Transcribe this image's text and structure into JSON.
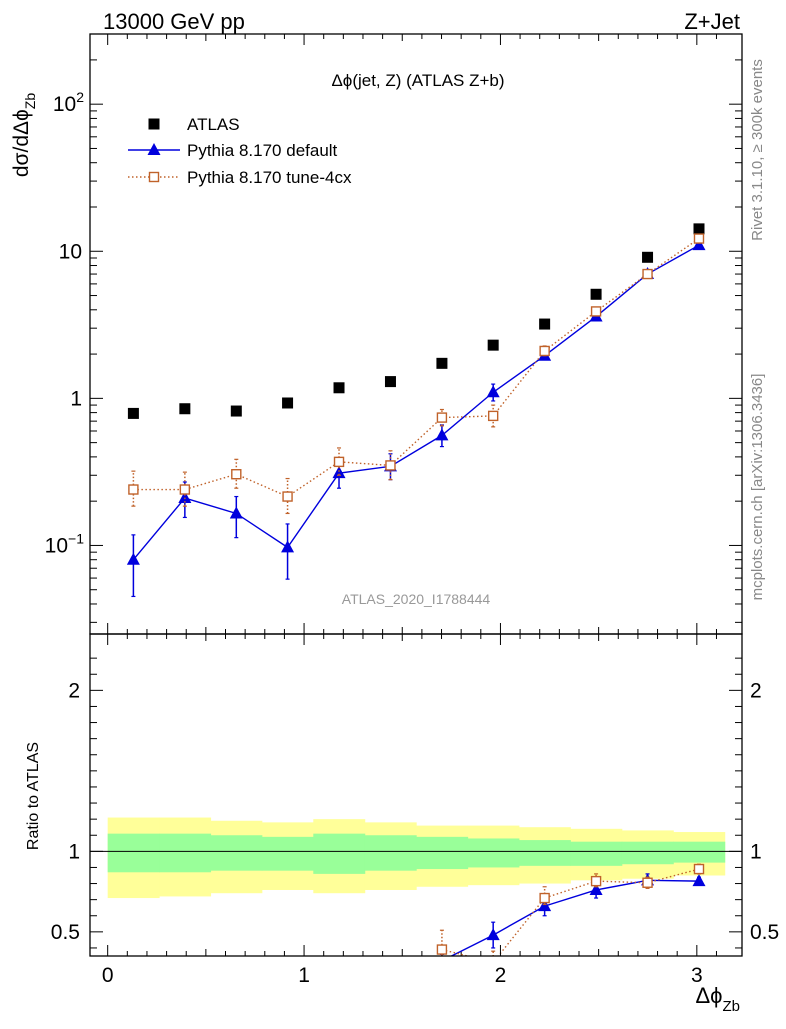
{
  "header": {
    "left": "13000 GeV pp",
    "right": "Z+Jet"
  },
  "side_labels": {
    "rivet": "Rivet 3.1.10, ≥ 300k events",
    "mcplots": "mcplots.cern.ch [arXiv:1306.3436]"
  },
  "watermark": "ATLAS_2020_I1788444",
  "colors": {
    "atlas": "#000000",
    "default": "#0000dd",
    "tune": "#c0622a",
    "band_inner": "#99ff99",
    "band_outer": "#ffff99"
  },
  "chart_data": [
    {
      "type": "scatter",
      "title": "Δϕ(jet, Z) (ATLAS Z+b)",
      "ylabel": "dσ/dΔϕ_Zb",
      "yscale": "log",
      "ylim": [
        0.025,
        300
      ],
      "xlim": [
        -0.09,
        3.23
      ],
      "yticks": [
        {
          "value": 0.1,
          "label": "10",
          "sup": "−1"
        },
        {
          "value": 1,
          "label": "1",
          "sup": ""
        },
        {
          "value": 10,
          "label": "10",
          "sup": ""
        },
        {
          "value": 100,
          "label": "10",
          "sup": "2"
        }
      ],
      "legend_position": "top-left",
      "series": [
        {
          "name": "ATLAS",
          "marker": "square",
          "x": [
            0.131,
            0.393,
            0.655,
            0.916,
            1.178,
            1.44,
            1.702,
            1.963,
            2.225,
            2.487,
            2.749,
            3.011
          ],
          "y": [
            0.79,
            0.85,
            0.82,
            0.93,
            1.18,
            1.3,
            1.73,
            2.3,
            3.2,
            5.1,
            9.1,
            14.2
          ],
          "err": [
            0,
            0,
            0,
            0,
            0,
            0,
            0,
            0,
            0,
            0,
            0,
            0
          ]
        },
        {
          "name": "Pythia 8.170 default",
          "marker": "triangle",
          "line": "solid",
          "x": [
            0.131,
            0.393,
            0.655,
            0.916,
            1.178,
            1.44,
            1.702,
            1.963,
            2.225,
            2.487,
            2.749,
            3.011
          ],
          "y": [
            0.08,
            0.21,
            0.165,
            0.097,
            0.31,
            0.345,
            0.56,
            1.1,
            1.95,
            3.6,
            7.0,
            11.0
          ],
          "ylo": [
            0.045,
            0.155,
            0.113,
            0.059,
            0.245,
            0.28,
            0.47,
            0.96,
            1.83,
            3.4,
            6.7,
            10.6
          ],
          "yhi": [
            0.118,
            0.27,
            0.215,
            0.14,
            0.385,
            0.42,
            0.66,
            1.25,
            2.1,
            3.8,
            7.3,
            11.4
          ]
        },
        {
          "name": "Pythia 8.170 tune-4cx",
          "marker": "open-square",
          "line": "dotted",
          "x": [
            0.131,
            0.393,
            0.655,
            0.916,
            1.178,
            1.44,
            1.702,
            1.963,
            2.225,
            2.487,
            2.749,
            3.011
          ],
          "y": [
            0.24,
            0.24,
            0.305,
            0.215,
            0.37,
            0.35,
            0.74,
            0.76,
            2.1,
            3.9,
            7.0,
            12.2
          ],
          "ylo": [
            0.185,
            0.185,
            0.245,
            0.165,
            0.3,
            0.28,
            0.65,
            0.64,
            1.95,
            3.7,
            6.7,
            11.8
          ],
          "yhi": [
            0.32,
            0.315,
            0.385,
            0.285,
            0.46,
            0.44,
            0.84,
            0.9,
            2.27,
            4.1,
            7.3,
            12.6
          ]
        }
      ]
    },
    {
      "type": "scatter",
      "ylabel": "Ratio to ATLAS",
      "xlabel": "Δϕ_Zb",
      "ylim": [
        0.35,
        2.35
      ],
      "xlim": [
        -0.09,
        3.23
      ],
      "xticks": [
        0,
        1,
        2,
        3
      ],
      "yticks": [
        {
          "value": 0.5,
          "label": "0.5"
        },
        {
          "value": 1,
          "label": "1"
        },
        {
          "value": 2,
          "label": "2"
        }
      ],
      "bands": {
        "edges": [
          0.0,
          0.262,
          0.524,
          0.785,
          1.047,
          1.309,
          1.571,
          1.833,
          2.094,
          2.356,
          2.618,
          2.88,
          3.142
        ],
        "inner_lo": [
          0.87,
          0.87,
          0.88,
          0.88,
          0.86,
          0.88,
          0.89,
          0.9,
          0.91,
          0.91,
          0.92,
          0.93
        ],
        "inner_hi": [
          1.11,
          1.11,
          1.1,
          1.09,
          1.11,
          1.1,
          1.09,
          1.08,
          1.07,
          1.06,
          1.06,
          1.06
        ],
        "outer_lo": [
          0.71,
          0.72,
          0.74,
          0.76,
          0.74,
          0.76,
          0.78,
          0.79,
          0.8,
          0.82,
          0.83,
          0.85
        ],
        "outer_hi": [
          1.21,
          1.21,
          1.19,
          1.18,
          1.2,
          1.18,
          1.16,
          1.16,
          1.15,
          1.14,
          1.13,
          1.12
        ]
      },
      "series": [
        {
          "name": "Pythia 8.170 default",
          "marker": "triangle",
          "line": "solid",
          "x": [
            1.702,
            1.963,
            2.225,
            2.487,
            2.749,
            3.011
          ],
          "y": [
            0.32,
            0.48,
            0.66,
            0.76,
            0.82,
            0.815
          ],
          "ylo": [
            0.28,
            0.4,
            0.6,
            0.71,
            0.78,
            0.79
          ],
          "yhi": [
            0.36,
            0.56,
            0.72,
            0.81,
            0.86,
            0.84
          ]
        },
        {
          "name": "Pythia 8.170 tune-4cx",
          "marker": "open-square",
          "line": "dotted",
          "x": [
            1.702,
            1.963,
            2.225,
            2.487,
            2.749,
            3.011
          ],
          "y": [
            0.39,
            0.31,
            0.71,
            0.815,
            0.805,
            0.89
          ],
          "ylo": [
            0.33,
            0.26,
            0.67,
            0.78,
            0.77,
            0.86
          ],
          "yhi": [
            0.51,
            0.38,
            0.78,
            0.86,
            0.84,
            0.92
          ]
        }
      ]
    }
  ]
}
